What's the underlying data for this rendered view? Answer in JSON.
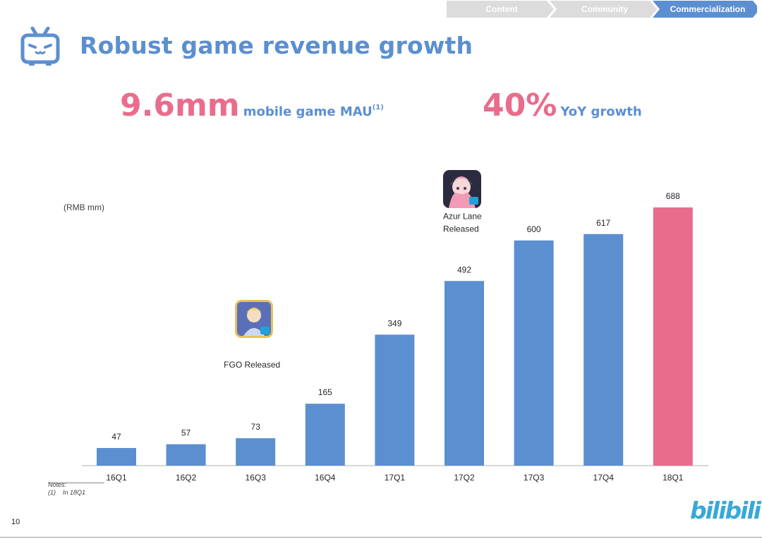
{
  "breadcrumb": {
    "items": [
      {
        "label": "Content",
        "active": false
      },
      {
        "label": "Community",
        "active": false
      },
      {
        "label": "Commercialization",
        "active": true
      }
    ],
    "colors": {
      "inactive": "#dcdcdc",
      "active": "#5b8fd0"
    }
  },
  "header": {
    "title": "Robust game revenue growth",
    "logo_icon": "tv-mascot-icon"
  },
  "kpis": [
    {
      "value": "9.6mm",
      "label": "mobile game MAU",
      "footnote": "(1)"
    },
    {
      "value": "40%",
      "label": "YoY growth",
      "footnote": ""
    }
  ],
  "chart_data": {
    "type": "bar",
    "unit_label": "(RMB mm)",
    "categories": [
      "16Q1",
      "16Q2",
      "16Q3",
      "16Q4",
      "17Q1",
      "17Q2",
      "17Q3",
      "17Q4",
      "18Q1"
    ],
    "values": [
      47,
      57,
      73,
      165,
      349,
      492,
      600,
      617,
      688
    ],
    "bar_colors": [
      "#5b8fd0",
      "#5b8fd0",
      "#5b8fd0",
      "#5b8fd0",
      "#5b8fd0",
      "#5b8fd0",
      "#5b8fd0",
      "#5b8fd0",
      "#ea6c8c"
    ],
    "ylim": [
      0,
      688
    ],
    "grid": false,
    "annotations": [
      {
        "category": "16Q3",
        "text": [
          "FGO Released"
        ],
        "icon": "fgo-game-icon"
      },
      {
        "category": "17Q2",
        "text": [
          "Azur Lane",
          "Released"
        ],
        "icon": "azur-lane-game-icon"
      }
    ]
  },
  "notes": {
    "heading": "Notes:",
    "items": [
      {
        "marker": "(1)",
        "text": "In 18Q1"
      }
    ]
  },
  "footer": {
    "page_number": "10",
    "brand": "bilibili"
  }
}
